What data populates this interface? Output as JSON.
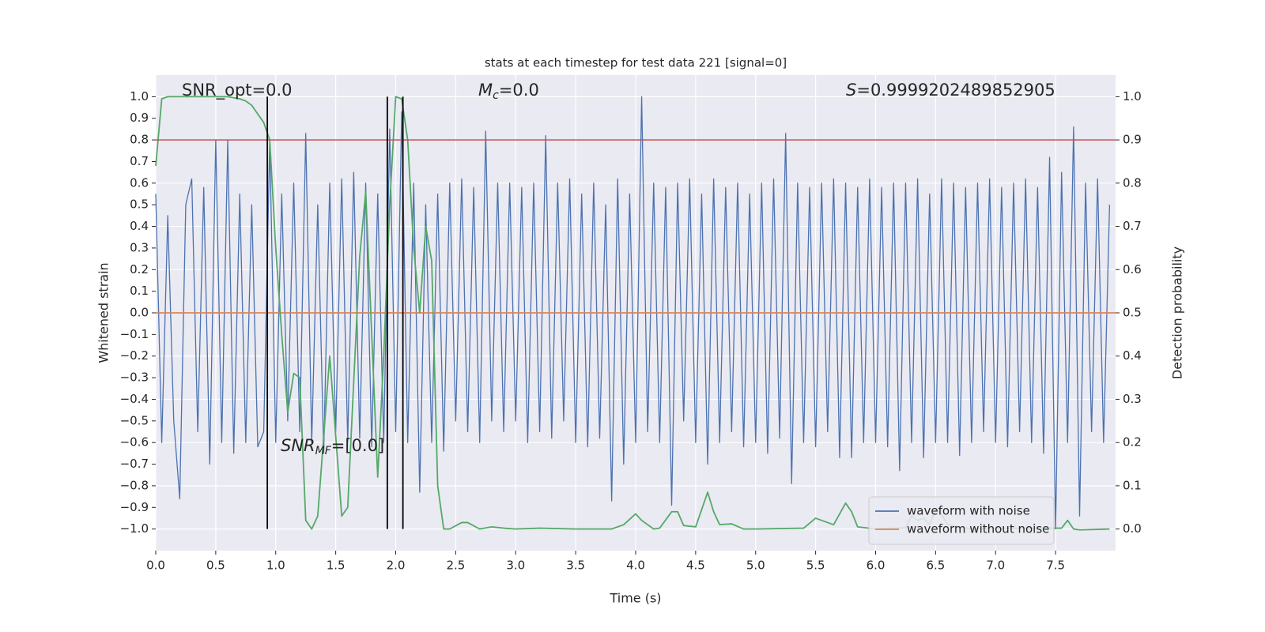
{
  "chart_data": {
    "type": "line",
    "title": "stats at each timestep for test data 221 [signal=0]",
    "xlabel": "Time (s)",
    "ylabel": "Whitened strain",
    "y2label": "Detection probability",
    "snr_opt": "SNR_opt=0.0",
    "chirp_mass": {
      "symbol": "M",
      "subscript": "c",
      "text": "=0.0"
    },
    "score": {
      "symbol": "S",
      "text": "=0.9999202489852905"
    },
    "snr_mf": {
      "symbol": "SNR",
      "subscript": "MF",
      "text": "=[0.0]"
    },
    "xlim": [
      0,
      8
    ],
    "ylim": [
      -1.1,
      1.1
    ],
    "y2lim": [
      -0.05,
      1.05
    ],
    "xticks": [
      {
        "value": 0,
        "label": "0.0"
      },
      0.5,
      {
        "value": 1,
        "label": "1.0"
      },
      1.5,
      {
        "value": 2,
        "label": "2.0"
      },
      2.5,
      {
        "value": 3,
        "label": "3.0"
      },
      3.5,
      {
        "value": 4,
        "label": "4.0"
      },
      4.5,
      {
        "value": 5,
        "label": "5.0"
      },
      5.5,
      {
        "value": 6,
        "label": "6.0"
      },
      6.5,
      {
        "value": 7,
        "label": "7.0"
      },
      7.5
    ],
    "yticks": [
      {
        "value": -1,
        "label": "−1.0"
      },
      {
        "value": -0.9,
        "label": "−0.9"
      },
      {
        "value": -0.8,
        "label": "−0.8"
      },
      {
        "value": -0.7,
        "label": "−0.7"
      },
      {
        "value": -0.6,
        "label": "−0.6"
      },
      {
        "value": -0.5,
        "label": "−0.5"
      },
      {
        "value": -0.4,
        "label": "−0.4"
      },
      {
        "value": -0.3,
        "label": "−0.3"
      },
      {
        "value": -0.2,
        "label": "−0.2"
      },
      {
        "value": -0.1,
        "label": "−0.1"
      },
      {
        "value": 0,
        "label": "0.0"
      },
      0.1,
      0.2,
      0.3,
      0.4,
      0.5,
      0.6,
      0.7,
      0.8,
      0.9,
      {
        "value": 1,
        "label": "1.0"
      }
    ],
    "y2ticks": [
      {
        "value": 0,
        "label": "0.0"
      },
      0.1,
      0.2,
      0.3,
      0.4,
      0.5,
      0.6,
      0.7,
      0.8,
      0.9,
      {
        "value": 1,
        "label": "1.0"
      }
    ],
    "grid": true,
    "legend": "lower right",
    "threshold": 0.9,
    "threshold_color": "#c44e52",
    "vlines": [
      0.93,
      1.93,
      2.06
    ],
    "x": [
      0,
      0.05,
      0.1,
      0.15,
      0.2,
      0.25,
      0.3,
      0.35,
      0.4,
      0.45,
      0.5,
      0.55,
      0.6,
      0.65,
      0.7,
      0.75,
      0.8,
      0.85,
      0.9,
      0.95,
      1,
      1.05,
      1.1,
      1.15,
      1.2,
      1.25,
      1.3,
      1.35,
      1.4,
      1.45,
      1.5,
      1.55,
      1.6,
      1.65,
      1.7,
      1.75,
      1.8,
      1.85,
      1.9,
      1.95,
      2,
      2.05,
      2.1,
      2.15,
      2.2,
      2.25,
      2.3,
      2.35,
      2.4,
      2.45,
      2.5,
      2.55,
      2.6,
      2.65,
      2.7,
      2.75,
      2.8,
      2.85,
      2.9,
      2.95,
      3,
      3.05,
      3.1,
      3.15,
      3.2,
      3.25,
      3.3,
      3.35,
      3.4,
      3.45,
      3.5,
      3.55,
      3.6,
      3.65,
      3.7,
      3.75,
      3.8,
      3.85,
      3.9,
      3.95,
      4,
      4.05,
      4.1,
      4.15,
      4.2,
      4.25,
      4.3,
      4.35,
      4.4,
      4.45,
      4.5,
      4.55,
      4.6,
      4.65,
      4.7,
      4.75,
      4.8,
      4.85,
      4.9,
      4.95,
      5,
      5.05,
      5.1,
      5.15,
      5.2,
      5.25,
      5.3,
      5.35,
      5.4,
      5.45,
      5.5,
      5.55,
      5.6,
      5.65,
      5.7,
      5.75,
      5.8,
      5.85,
      5.9,
      5.95,
      6,
      6.05,
      6.1,
      6.15,
      6.2,
      6.25,
      6.3,
      6.35,
      6.4,
      6.45,
      6.5,
      6.55,
      6.6,
      6.65,
      6.7,
      6.75,
      6.8,
      6.85,
      6.9,
      6.95,
      7,
      7.05,
      7.1,
      7.15,
      7.2,
      7.25,
      7.3,
      7.35,
      7.4,
      7.45,
      7.5,
      7.55,
      7.6,
      7.65,
      7.7,
      7.75,
      7.8,
      7.85,
      7.9,
      7.95
    ],
    "series": [
      {
        "name": "waveform with noise",
        "color": "#4c72b0",
        "values": [
          0.55,
          -0.6,
          0.45,
          -0.5,
          -0.86,
          0.5,
          0.62,
          -0.55,
          0.58,
          -0.7,
          0.8,
          -0.6,
          0.8,
          -0.65,
          0.55,
          -0.6,
          0.5,
          -0.62,
          -0.55,
          0.8,
          -0.6,
          0.55,
          -0.5,
          0.6,
          -0.55,
          0.83,
          -0.6,
          0.5,
          -0.65,
          0.6,
          -0.55,
          0.62,
          -0.6,
          0.65,
          -0.58,
          0.6,
          -0.62,
          0.55,
          -0.6,
          0.85,
          -0.55,
          0.93,
          -0.6,
          0.6,
          -0.83,
          0.5,
          -0.6,
          0.55,
          -0.64,
          0.6,
          -0.5,
          0.62,
          -0.55,
          0.58,
          -0.6,
          0.84,
          -0.5,
          0.6,
          -0.55,
          0.6,
          -0.5,
          0.58,
          -0.6,
          0.6,
          -0.55,
          0.82,
          -0.58,
          0.6,
          -0.5,
          0.62,
          -0.6,
          0.55,
          -0.62,
          0.6,
          -0.58,
          0.5,
          -0.87,
          0.62,
          -0.7,
          0.55,
          -0.6,
          1.0,
          -0.55,
          0.6,
          -0.6,
          0.58,
          -0.89,
          0.6,
          -0.5,
          0.62,
          -0.6,
          0.55,
          -0.7,
          0.62,
          -0.6,
          0.58,
          -0.55,
          0.6,
          -0.62,
          0.55,
          -0.6,
          0.6,
          -0.65,
          0.62,
          -0.58,
          0.83,
          -0.79,
          0.6,
          -0.6,
          0.58,
          -0.62,
          0.6,
          -0.55,
          0.62,
          -0.67,
          0.6,
          -0.67,
          0.58,
          -0.6,
          0.62,
          -0.6,
          0.58,
          -0.62,
          0.6,
          -0.73,
          0.6,
          -0.6,
          0.62,
          -0.67,
          0.55,
          -0.6,
          0.62,
          -0.6,
          0.6,
          -0.66,
          0.58,
          -0.6,
          0.6,
          -0.55,
          0.62,
          -0.6,
          0.58,
          -0.62,
          0.6,
          -0.55,
          0.62,
          -0.6,
          0.58,
          -0.65,
          0.72,
          -1.0,
          0.65,
          -0.6,
          0.86,
          -0.94,
          0.6,
          -0.55,
          0.62,
          -0.6,
          0.5
        ]
      },
      {
        "name": "waveform without noise",
        "color": "#dd8452",
        "x": [
          0,
          8
        ],
        "values": [
          0,
          0
        ]
      },
      {
        "color": "#55a868",
        "axis": "y2",
        "x": [
          0,
          0.05,
          0.1,
          0.2,
          0.3,
          0.4,
          0.5,
          0.6,
          0.7,
          0.75,
          0.8,
          0.85,
          0.9,
          0.95,
          1.0,
          1.05,
          1.1,
          1.15,
          1.2,
          1.25,
          1.3,
          1.35,
          1.45,
          1.55,
          1.6,
          1.7,
          1.75,
          1.85,
          1.9,
          1.95,
          2.0,
          2.05,
          2.1,
          2.15,
          2.2,
          2.25,
          2.3,
          2.35,
          2.4,
          2.45,
          2.55,
          2.6,
          2.7,
          2.8,
          2.9,
          3.0,
          3.2,
          3.5,
          3.8,
          3.9,
          4.0,
          4.05,
          4.15,
          4.2,
          4.3,
          4.35,
          4.4,
          4.5,
          4.6,
          4.65,
          4.7,
          4.8,
          4.9,
          5.0,
          5.4,
          5.5,
          5.6,
          5.65,
          5.75,
          5.8,
          5.85,
          6.0,
          6.25,
          6.3,
          6.35,
          6.4,
          6.45,
          6.5,
          6.55,
          6.6,
          6.8,
          7.0,
          7.55,
          7.6,
          7.65,
          7.7,
          7.95
        ],
        "values": [
          0.84,
          0.995,
          1.0,
          1.0,
          1.0,
          1.0,
          1.0,
          1.0,
          0.995,
          0.99,
          0.98,
          0.96,
          0.94,
          0.9,
          0.65,
          0.45,
          0.27,
          0.36,
          0.35,
          0.02,
          0.0,
          0.03,
          0.4,
          0.03,
          0.05,
          0.63,
          0.78,
          0.12,
          0.4,
          0.75,
          1.0,
          0.995,
          0.9,
          0.65,
          0.5,
          0.7,
          0.62,
          0.1,
          0.0,
          0.0,
          0.015,
          0.015,
          0.0,
          0.005,
          0.002,
          0.0,
          0.002,
          0.0,
          0.0,
          0.01,
          0.035,
          0.02,
          0.0,
          0.002,
          0.04,
          0.04,
          0.008,
          0.005,
          0.085,
          0.04,
          0.01,
          0.012,
          0.0,
          0.0,
          0.002,
          0.025,
          0.015,
          0.01,
          0.06,
          0.04,
          0.005,
          0.0,
          0.003,
          0.03,
          0.02,
          0.025,
          0.01,
          0.045,
          0.035,
          0.01,
          0.0,
          0.002,
          0.002,
          0.02,
          0.0,
          -0.002,
          0.0
        ]
      }
    ]
  }
}
